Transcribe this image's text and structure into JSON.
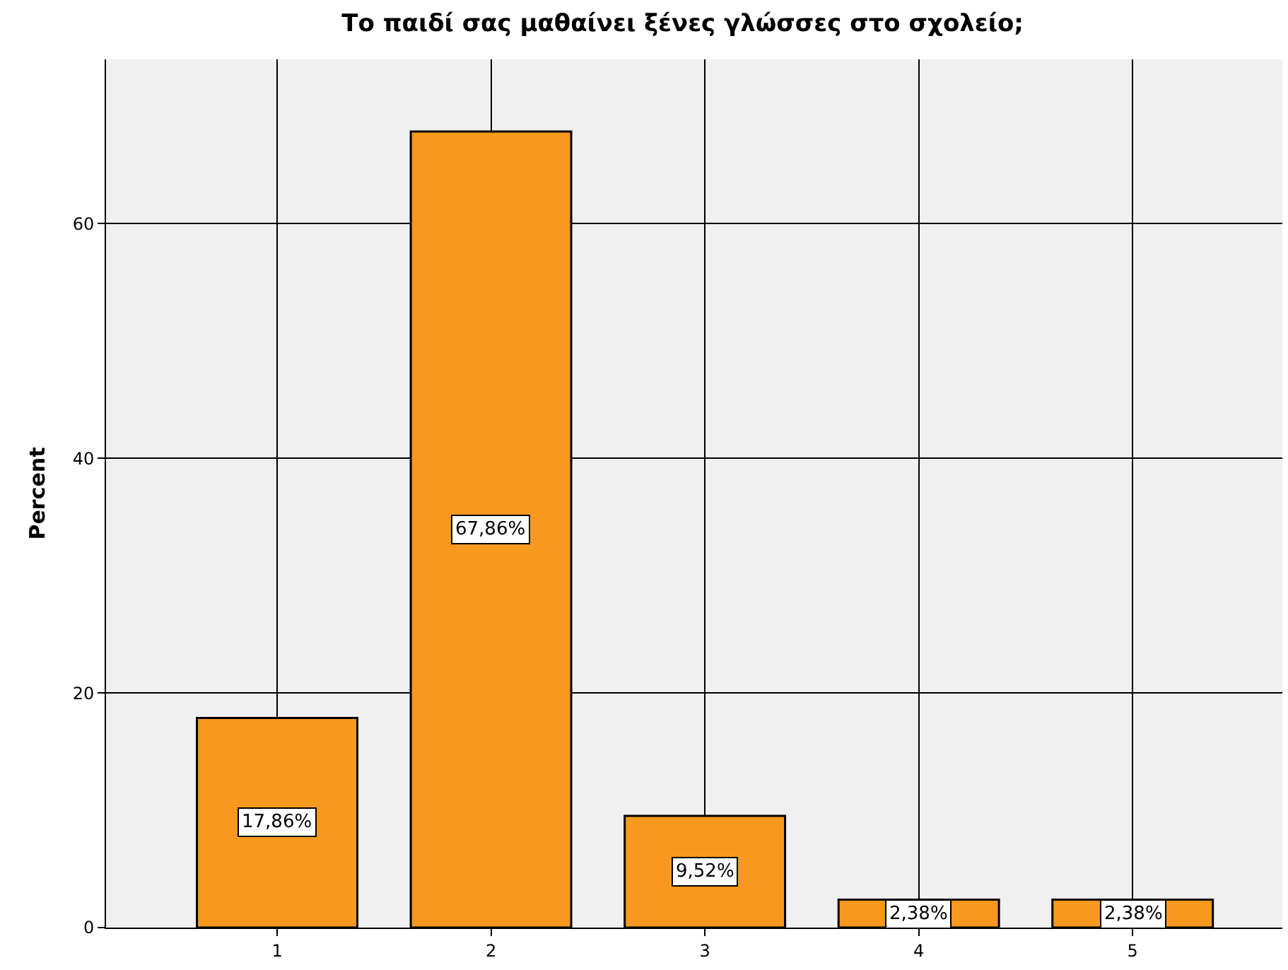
{
  "chart_data": {
    "type": "bar",
    "title": "Το παιδί σας μαθαίνει ξένες γλώσσες στο σχολείο;",
    "ylabel": "Percent",
    "categories": [
      "1",
      "2",
      "3",
      "4",
      "5"
    ],
    "values": [
      17.86,
      67.86,
      9.52,
      2.38,
      2.38
    ],
    "value_labels": [
      "17,86%",
      "67,86%",
      "9,52%",
      "2,38%",
      "2,38%"
    ],
    "color": "#f7991f",
    "ylim": [
      0,
      74
    ],
    "yticks": [
      0,
      20,
      40,
      60
    ],
    "grid": true,
    "legend": false
  }
}
